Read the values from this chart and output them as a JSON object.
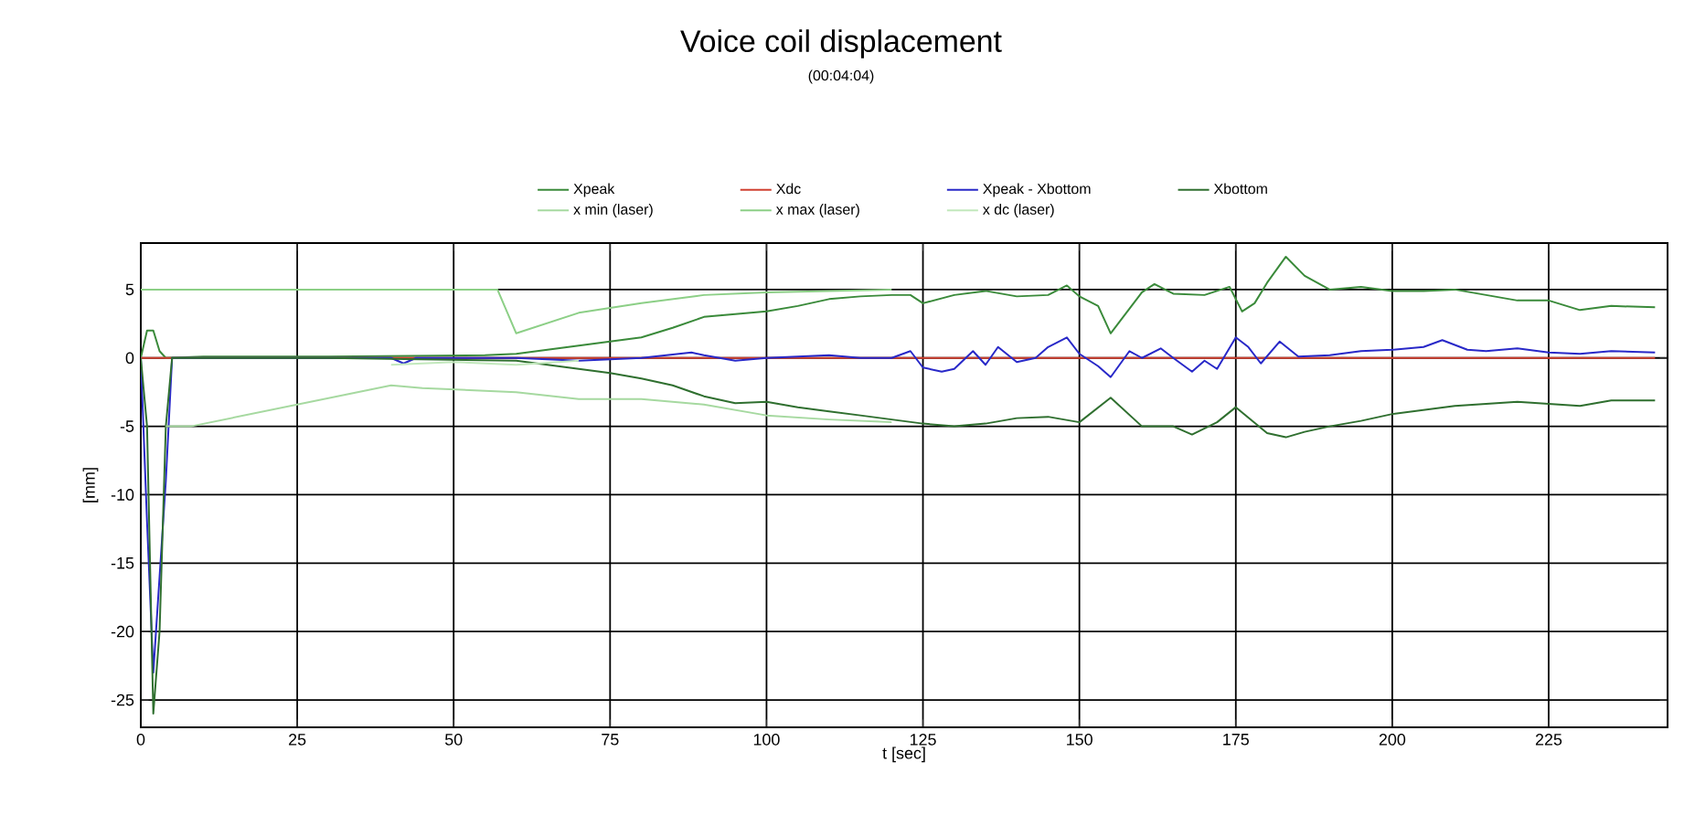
{
  "chart_data": {
    "type": "line",
    "title": "Voice coil displacement",
    "subtitle": "(00:04:04)",
    "xlabel": "t [sec]",
    "ylabel": "[mm]",
    "xlim": [
      0,
      244
    ],
    "ylim": [
      -27,
      8.4
    ],
    "xticks": [
      0,
      25,
      50,
      75,
      100,
      125,
      150,
      175,
      200,
      225
    ],
    "yticks": [
      -25,
      -20,
      -15,
      -10,
      -5,
      0,
      5
    ],
    "grid": true,
    "legend": "top",
    "marker": "none",
    "line_style": "solid",
    "series": [
      {
        "name": "Xpeak",
        "color": "#3a8a3a",
        "x": [
          0,
          1,
          2,
          3,
          4,
          10,
          30,
          55,
          60,
          65,
          70,
          75,
          80,
          85,
          90,
          95,
          100,
          105,
          110,
          115,
          120,
          123,
          125,
          130,
          135,
          140,
          145,
          148,
          150,
          153,
          155,
          157,
          160,
          162,
          165,
          170,
          174,
          176,
          178,
          180,
          183,
          186,
          190,
          195,
          200,
          205,
          210,
          215,
          220,
          225,
          230,
          235,
          242
        ],
        "values": [
          0,
          2,
          2,
          0.5,
          0,
          0.1,
          0.1,
          0.2,
          0.3,
          0.6,
          0.9,
          1.2,
          1.5,
          2.2,
          3,
          3.2,
          3.4,
          3.8,
          4.3,
          4.5,
          4.6,
          4.6,
          4,
          4.6,
          4.9,
          4.5,
          4.6,
          5.3,
          4.5,
          3.8,
          1.8,
          3,
          4.8,
          5.4,
          4.7,
          4.6,
          5.2,
          3.4,
          4,
          5.5,
          7.4,
          6,
          5,
          5.2,
          4.9,
          4.9,
          5,
          4.6,
          4.2,
          4.2,
          3.5,
          3.8,
          3.7
        ]
      },
      {
        "name": "Xdc",
        "color": "#d04030",
        "x": [
          0,
          5,
          60,
          120,
          180,
          242
        ],
        "values": [
          0,
          0,
          0,
          0,
          0,
          0
        ]
      },
      {
        "name": "Xpeak - Xbottom",
        "color": "#2828c8",
        "x": [
          0,
          1,
          2,
          3,
          4,
          5,
          40,
          42,
          44,
          60,
          70,
          80,
          88,
          90,
          95,
          100,
          110,
          115,
          120,
          123,
          125,
          128,
          130,
          133,
          135,
          137,
          140,
          143,
          145,
          148,
          150,
          153,
          155,
          158,
          160,
          163,
          165,
          168,
          170,
          172,
          175,
          177,
          179,
          182,
          185,
          190,
          195,
          200,
          205,
          208,
          212,
          215,
          220,
          225,
          230,
          235,
          242
        ],
        "values": [
          0,
          -12,
          -23,
          -16,
          -9,
          0,
          0,
          -0.4,
          0,
          0,
          -0.2,
          0,
          0.4,
          0.2,
          -0.2,
          0,
          0.2,
          0,
          0,
          0.5,
          -0.7,
          -1,
          -0.8,
          0.5,
          -0.5,
          0.8,
          -0.3,
          0,
          0.8,
          1.5,
          0.3,
          -0.6,
          -1.4,
          0.5,
          0,
          0.7,
          0,
          -1,
          -0.2,
          -0.8,
          1.5,
          0.8,
          -0.4,
          1.2,
          0.1,
          0.2,
          0.5,
          0.6,
          0.8,
          1.3,
          0.6,
          0.5,
          0.7,
          0.4,
          0.3,
          0.5,
          0.4
        ]
      },
      {
        "name": "Xbottom",
        "color": "#2f6f2f",
        "x": [
          0,
          1,
          2,
          3,
          4,
          5,
          30,
          60,
          65,
          70,
          75,
          80,
          85,
          90,
          95,
          100,
          105,
          110,
          115,
          120,
          125,
          130,
          135,
          140,
          145,
          150,
          155,
          160,
          165,
          168,
          172,
          175,
          180,
          183,
          186,
          190,
          195,
          200,
          210,
          220,
          230,
          235,
          242
        ],
        "values": [
          0,
          -5,
          -26,
          -20,
          -5,
          0,
          0,
          -0.2,
          -0.5,
          -0.8,
          -1.1,
          -1.5,
          -2,
          -2.8,
          -3.3,
          -3.2,
          -3.6,
          -3.9,
          -4.2,
          -4.5,
          -4.8,
          -5,
          -4.8,
          -4.4,
          -4.3,
          -4.7,
          -2.9,
          -5,
          -5,
          -5.6,
          -4.7,
          -3.6,
          -5.5,
          -5.8,
          -5.4,
          -5,
          -4.6,
          -4.1,
          -3.5,
          -3.2,
          -3.5,
          -3.1,
          -3.1
        ]
      },
      {
        "name": "x min (laser)",
        "color": "#a6d9a0",
        "x": [
          4,
          8,
          40,
          45,
          60,
          70,
          80,
          90,
          100,
          110,
          120
        ],
        "values": [
          -5,
          -5,
          -2,
          -2.2,
          -2.5,
          -3,
          -3,
          -3.4,
          -4.2,
          -4.5,
          -4.7
        ]
      },
      {
        "name": "x max (laser)",
        "color": "#8ccf86",
        "x": [
          0,
          57,
          60,
          70,
          80,
          90,
          100,
          110,
          120
        ],
        "values": [
          5,
          5,
          1.8,
          3.3,
          4,
          4.6,
          4.8,
          4.9,
          5
        ]
      },
      {
        "name": "x dc (laser)",
        "color": "#c2e8bc",
        "x": [
          40,
          50,
          60,
          70
        ],
        "values": [
          -0.5,
          -0.3,
          -0.5,
          -0.2
        ]
      }
    ]
  }
}
